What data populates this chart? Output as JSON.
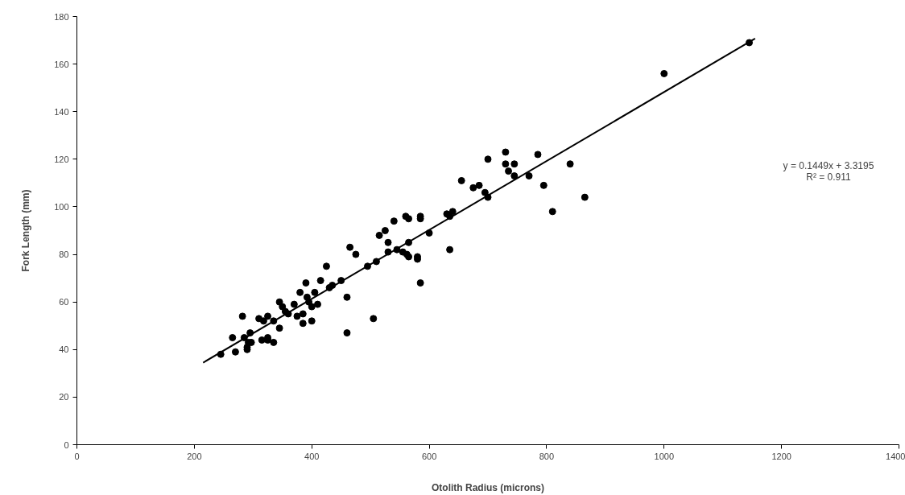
{
  "chart_data": {
    "type": "scatter",
    "xlabel": "Otolith Radius (microns)",
    "ylabel": "Fork Length (mm)",
    "xlim": [
      0,
      1400
    ],
    "ylim": [
      0,
      180
    ],
    "xticks": [
      0,
      200,
      400,
      600,
      800,
      1000,
      1200,
      1400
    ],
    "yticks": [
      0,
      20,
      40,
      60,
      80,
      100,
      120,
      140,
      160,
      180
    ],
    "grid": false,
    "marker": "circle",
    "annotations": [
      "y = 0.1449x + 3.3195",
      "R² = 0.911"
    ],
    "series": [
      {
        "color": "#000000",
        "x": [
          245,
          265,
          270,
          282,
          285,
          290,
          290,
          292,
          295,
          297,
          310,
          315,
          318,
          325,
          325,
          325,
          335,
          335,
          345,
          345,
          350,
          355,
          360,
          370,
          375,
          380,
          385,
          385,
          390,
          392,
          395,
          400,
          400,
          405,
          410,
          415,
          425,
          430,
          435,
          450,
          460,
          460,
          465,
          475,
          495,
          505,
          510,
          515,
          525,
          530,
          530,
          540,
          545,
          555,
          560,
          562,
          565,
          565,
          565,
          580,
          580,
          585,
          585,
          585,
          600,
          630,
          635,
          635,
          640,
          655,
          675,
          685,
          695,
          700,
          700,
          730,
          730,
          735,
          745,
          745,
          770,
          785,
          795,
          810,
          840,
          865,
          1000,
          1145
        ],
        "values": [
          38,
          45,
          39,
          54,
          45,
          41,
          40,
          43,
          47,
          43,
          53,
          44,
          52,
          54,
          45,
          44,
          52,
          43,
          60,
          49,
          58,
          56,
          55,
          59,
          54,
          64,
          55,
          51,
          68,
          62,
          60,
          58,
          52,
          64,
          59,
          69,
          75,
          66,
          67,
          69,
          62,
          47,
          83,
          80,
          75,
          53,
          77,
          88,
          90,
          85,
          81,
          94,
          82,
          81,
          96,
          80,
          95,
          85,
          79,
          79,
          78,
          96,
          95,
          68,
          89,
          97,
          96,
          82,
          98,
          111,
          108,
          109,
          106,
          120,
          104,
          123,
          118,
          115,
          118,
          113,
          113,
          122,
          109,
          98,
          118,
          104,
          156,
          169
        ]
      },
      {
        "type": "line",
        "color": "#000000",
        "x": [
          215,
          1155
        ],
        "values": [
          34.5,
          170.7
        ],
        "marker": "none",
        "line_style": "solid"
      }
    ]
  }
}
